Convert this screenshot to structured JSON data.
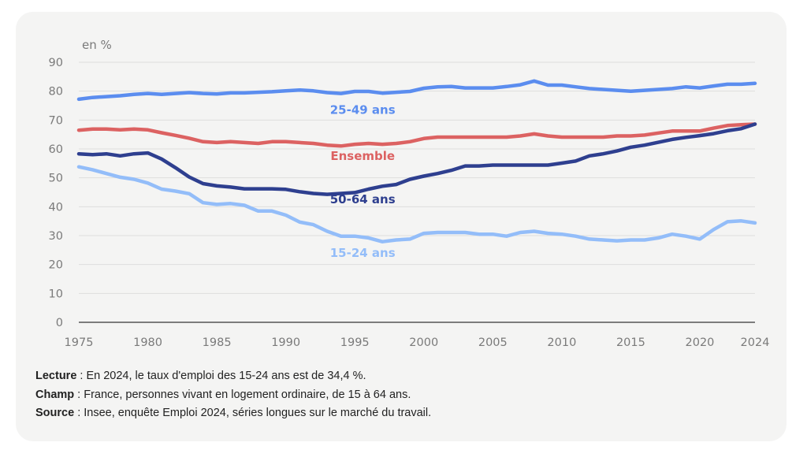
{
  "chart_data": {
    "type": "line",
    "title": "",
    "ylabel": "en %",
    "xlabel": "",
    "ylim": [
      0,
      90
    ],
    "xlim": [
      1975,
      2024
    ],
    "yticks": [
      0,
      10,
      20,
      30,
      40,
      50,
      60,
      70,
      80,
      90
    ],
    "xticks": [
      1975,
      1980,
      1985,
      1990,
      1995,
      2000,
      2005,
      2010,
      2015,
      2020,
      2024
    ],
    "grid": true,
    "x": [
      1975,
      1976,
      1977,
      1978,
      1979,
      1980,
      1981,
      1982,
      1983,
      1984,
      1985,
      1986,
      1987,
      1988,
      1989,
      1990,
      1991,
      1992,
      1993,
      1994,
      1995,
      1996,
      1997,
      1998,
      1999,
      2000,
      2001,
      2002,
      2003,
      2004,
      2005,
      2006,
      2007,
      2008,
      2009,
      2010,
      2011,
      2012,
      2013,
      2014,
      2015,
      2016,
      2017,
      2018,
      2019,
      2020,
      2021,
      2022,
      2023,
      2024
    ],
    "series": [
      {
        "name": "25-49 ans",
        "color": "#5b8def",
        "label_at": [
          1995,
          73.5
        ],
        "values": [
          77.2,
          77.8,
          78.1,
          78.4,
          78.9,
          79.2,
          78.9,
          79.2,
          79.5,
          79.2,
          79.0,
          79.4,
          79.4,
          79.6,
          79.8,
          80.1,
          80.4,
          80.1,
          79.5,
          79.2,
          79.9,
          79.9,
          79.3,
          79.6,
          79.9,
          81.0,
          81.5,
          81.6,
          81.1,
          81.1,
          81.1,
          81.6,
          82.2,
          83.5,
          82.1,
          82.1,
          81.5,
          80.9,
          80.6,
          80.3,
          80.0,
          80.3,
          80.6,
          80.9,
          81.5,
          81.1,
          81.8,
          82.4,
          82.4,
          82.7
        ]
      },
      {
        "name": "Ensemble",
        "color": "#dc6262",
        "label_at": [
          1995,
          57.5
        ],
        "values": [
          66.5,
          66.9,
          66.9,
          66.6,
          66.9,
          66.6,
          65.6,
          64.7,
          63.7,
          62.5,
          62.2,
          62.5,
          62.2,
          61.9,
          62.5,
          62.5,
          62.2,
          61.9,
          61.3,
          61.0,
          61.6,
          61.9,
          61.6,
          61.9,
          62.5,
          63.6,
          64.1,
          64.1,
          64.1,
          64.1,
          64.1,
          64.1,
          64.5,
          65.2,
          64.5,
          64.1,
          64.1,
          64.1,
          64.1,
          64.5,
          64.5,
          64.8,
          65.5,
          66.2,
          66.2,
          66.2,
          67.2,
          68.1,
          68.4,
          68.6
        ]
      },
      {
        "name": "50-64 ans",
        "color": "#2e3f8f",
        "label_at": [
          1995,
          42.5
        ],
        "values": [
          58.3,
          58.0,
          58.3,
          57.6,
          58.3,
          58.6,
          56.5,
          53.5,
          50.3,
          48.0,
          47.2,
          46.8,
          46.2,
          46.2,
          46.2,
          46.0,
          45.2,
          44.6,
          44.3,
          44.6,
          44.9,
          46.1,
          47.1,
          47.7,
          49.5,
          50.6,
          51.5,
          52.6,
          54.1,
          54.1,
          54.4,
          54.4,
          54.4,
          54.4,
          54.4,
          55.1,
          55.8,
          57.6,
          58.3,
          59.3,
          60.6,
          61.3,
          62.3,
          63.3,
          64.0,
          64.6,
          65.3,
          66.3,
          67.0,
          68.6
        ]
      },
      {
        "name": "15-24 ans",
        "color": "#93bdf9",
        "label_at": [
          1995,
          24.0
        ],
        "values": [
          53.8,
          52.8,
          51.5,
          50.2,
          49.5,
          48.2,
          46.1,
          45.4,
          44.5,
          41.4,
          40.8,
          41.1,
          40.5,
          38.5,
          38.5,
          37.1,
          34.7,
          33.8,
          31.5,
          29.8,
          29.8,
          29.2,
          27.9,
          28.5,
          28.8,
          30.8,
          31.1,
          31.1,
          31.1,
          30.5,
          30.5,
          29.8,
          31.1,
          31.5,
          30.8,
          30.5,
          29.8,
          28.8,
          28.5,
          28.2,
          28.5,
          28.5,
          29.2,
          30.5,
          29.8,
          28.8,
          32.1,
          34.8,
          35.1,
          34.4
        ]
      }
    ]
  },
  "notes": [
    {
      "label": "Lecture",
      "text": " : En 2024, le taux d'emploi des 15-24 ans est de 34,4 %."
    },
    {
      "label": "Champ",
      "text": " : France, personnes vivant en logement ordinaire, de 15 à 64 ans."
    },
    {
      "label": "Source",
      "text": " : Insee, enquête Emploi 2024, séries longues sur le marché du travail."
    }
  ]
}
